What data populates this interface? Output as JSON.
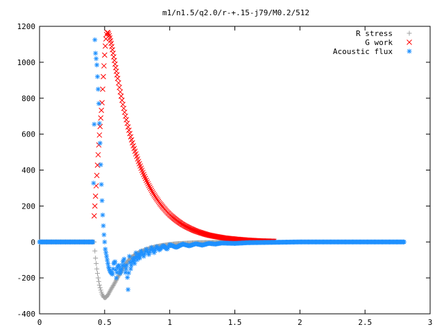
{
  "chart_data": {
    "type": "scatter",
    "title": "m1/n1.5/q2.0/r-+.15-j79/M0.2/512",
    "xlabel": "",
    "ylabel": "",
    "xlim": [
      0,
      3
    ],
    "ylim": [
      -400,
      1200
    ],
    "x_ticks": [
      0,
      0.5,
      1,
      1.5,
      2,
      2.5,
      3
    ],
    "x_tick_labels": [
      "0",
      "0.5",
      "1",
      "1.5",
      "2",
      "2.5",
      "3"
    ],
    "y_ticks": [
      -400,
      -200,
      0,
      200,
      400,
      600,
      800,
      1000,
      1200
    ],
    "y_tick_labels": [
      "-400",
      "-200",
      "0",
      "200",
      "400",
      "600",
      "800",
      "1000",
      "1200"
    ],
    "grid": false,
    "legend_position": "top-right",
    "series": [
      {
        "name": "R stress",
        "marker": "plus",
        "color": "#a0a0a0",
        "points": [
          [
            0.0,
            0
          ],
          [
            0.05,
            0
          ],
          [
            0.1,
            0
          ],
          [
            0.15,
            0
          ],
          [
            0.2,
            0
          ],
          [
            0.25,
            0
          ],
          [
            0.3,
            0
          ],
          [
            0.35,
            0
          ],
          [
            0.4,
            0
          ],
          [
            0.42,
            0
          ],
          [
            0.425,
            -50
          ],
          [
            0.43,
            -90
          ],
          [
            0.435,
            -120
          ],
          [
            0.44,
            -150
          ],
          [
            0.445,
            -175
          ],
          [
            0.45,
            -200
          ],
          [
            0.455,
            -220
          ],
          [
            0.46,
            -240
          ],
          [
            0.465,
            -255
          ],
          [
            0.47,
            -268
          ],
          [
            0.475,
            -280
          ],
          [
            0.48,
            -290
          ],
          [
            0.485,
            -298
          ],
          [
            0.49,
            -304
          ],
          [
            0.495,
            -308
          ],
          [
            0.5,
            -310
          ],
          [
            0.505,
            -310
          ],
          [
            0.51,
            -308
          ],
          [
            0.515,
            -305
          ],
          [
            0.52,
            -300
          ],
          [
            0.525,
            -295
          ],
          [
            0.53,
            -289
          ],
          [
            0.54,
            -275
          ],
          [
            0.55,
            -262
          ],
          [
            0.56,
            -250
          ],
          [
            0.57,
            -238
          ],
          [
            0.58,
            -225
          ],
          [
            0.59,
            -212
          ],
          [
            0.6,
            -198
          ],
          [
            0.61,
            -185
          ],
          [
            0.62,
            -172
          ],
          [
            0.63,
            -160
          ],
          [
            0.64,
            -148
          ],
          [
            0.65,
            -136
          ],
          [
            0.66,
            -125
          ],
          [
            0.67,
            -115
          ],
          [
            0.68,
            -106
          ],
          [
            0.69,
            -98
          ],
          [
            0.7,
            -90
          ],
          [
            0.72,
            -78
          ],
          [
            0.74,
            -68
          ],
          [
            0.76,
            -60
          ],
          [
            0.78,
            -53
          ],
          [
            0.8,
            -47
          ],
          [
            0.82,
            -42
          ],
          [
            0.85,
            -35
          ],
          [
            0.88,
            -29
          ],
          [
            0.91,
            -24
          ],
          [
            0.94,
            -20
          ],
          [
            0.97,
            -17
          ],
          [
            1.0,
            -14
          ],
          [
            1.05,
            -10
          ],
          [
            1.1,
            -8
          ],
          [
            1.15,
            -6
          ],
          [
            1.2,
            -4
          ],
          [
            1.3,
            -3
          ],
          [
            1.4,
            -2
          ],
          [
            1.5,
            -1
          ],
          [
            1.6,
            -1
          ],
          [
            1.7,
            0
          ],
          [
            1.8,
            0
          ]
        ]
      },
      {
        "name": "G work",
        "marker": "cross",
        "color": "#ff0000",
        "points": [
          [
            0.42,
            145
          ],
          [
            0.43,
            255
          ],
          [
            0.44,
            370
          ],
          [
            0.45,
            485
          ],
          [
            0.46,
            595
          ],
          [
            0.47,
            690
          ],
          [
            0.48,
            775
          ],
          [
            0.485,
            850
          ],
          [
            0.49,
            920
          ],
          [
            0.495,
            980
          ],
          [
            0.5,
            1040
          ],
          [
            0.505,
            1090
          ],
          [
            0.51,
            1130
          ],
          [
            0.515,
            1155
          ],
          [
            0.52,
            1165
          ],
          [
            0.525,
            1165
          ],
          [
            0.53,
            1158
          ],
          [
            0.535,
            1148
          ],
          [
            0.54,
            1135
          ],
          [
            0.55,
            1105
          ],
          [
            0.56,
            1070
          ],
          [
            0.57,
            1030
          ],
          [
            0.58,
            990
          ],
          [
            0.59,
            950
          ],
          [
            0.6,
            910
          ],
          [
            0.62,
            835
          ],
          [
            0.64,
            765
          ],
          [
            0.66,
            700
          ],
          [
            0.68,
            640
          ],
          [
            0.7,
            585
          ],
          [
            0.72,
            535
          ],
          [
            0.74,
            490
          ],
          [
            0.76,
            448
          ],
          [
            0.78,
            410
          ],
          [
            0.8,
            375
          ],
          [
            0.82,
            343
          ],
          [
            0.84,
            314
          ],
          [
            0.86,
            287
          ],
          [
            0.88,
            262
          ],
          [
            0.9,
            240
          ],
          [
            0.92,
            219
          ],
          [
            0.94,
            200
          ],
          [
            0.96,
            183
          ],
          [
            0.98,
            167
          ],
          [
            1.0,
            152
          ],
          [
            1.03,
            133
          ],
          [
            1.06,
            116
          ],
          [
            1.09,
            101
          ],
          [
            1.12,
            88
          ],
          [
            1.15,
            77
          ],
          [
            1.18,
            67
          ],
          [
            1.21,
            58
          ],
          [
            1.24,
            51
          ],
          [
            1.27,
            44
          ],
          [
            1.3,
            38
          ],
          [
            1.34,
            32
          ],
          [
            1.38,
            27
          ],
          [
            1.42,
            22
          ],
          [
            1.46,
            19
          ],
          [
            1.5,
            16
          ],
          [
            1.55,
            13
          ],
          [
            1.6,
            10
          ],
          [
            1.65,
            8
          ],
          [
            1.7,
            6
          ],
          [
            1.75,
            5
          ],
          [
            1.8,
            4
          ]
        ]
      },
      {
        "name": "Acoustic flux",
        "marker": "star",
        "color": "#1e90ff",
        "points": [
          [
            0.0,
            0
          ],
          [
            0.05,
            0
          ],
          [
            0.1,
            0
          ],
          [
            0.15,
            0
          ],
          [
            0.2,
            0
          ],
          [
            0.25,
            0
          ],
          [
            0.3,
            0
          ],
          [
            0.35,
            0
          ],
          [
            0.4,
            0
          ],
          [
            0.41,
            0
          ],
          [
            0.42,
            655
          ],
          [
            0.425,
            1125
          ],
          [
            0.43,
            1050
          ],
          [
            0.435,
            1020
          ],
          [
            0.44,
            985
          ],
          [
            0.445,
            920
          ],
          [
            0.45,
            850
          ],
          [
            0.455,
            770
          ],
          [
            0.46,
            660
          ],
          [
            0.465,
            550
          ],
          [
            0.47,
            430
          ],
          [
            0.475,
            320
          ],
          [
            0.48,
            230
          ],
          [
            0.485,
            150
          ],
          [
            0.49,
            90
          ],
          [
            0.495,
            40
          ],
          [
            0.5,
            0
          ],
          [
            0.505,
            -40
          ],
          [
            0.51,
            -60
          ],
          [
            0.515,
            -80
          ],
          [
            0.52,
            -100
          ],
          [
            0.525,
            -120
          ],
          [
            0.53,
            -140
          ],
          [
            0.535,
            -150
          ],
          [
            0.54,
            -160
          ],
          [
            0.55,
            -170
          ],
          [
            0.56,
            -180
          ],
          [
            0.565,
            -150
          ],
          [
            0.57,
            -120
          ],
          [
            0.58,
            -110
          ],
          [
            0.59,
            -200
          ],
          [
            0.6,
            -140
          ],
          [
            0.61,
            -130
          ],
          [
            0.62,
            -175
          ],
          [
            0.63,
            -150
          ],
          [
            0.64,
            -110
          ],
          [
            0.65,
            -95
          ],
          [
            0.66,
            -170
          ],
          [
            0.67,
            -130
          ],
          [
            0.68,
            -265
          ],
          [
            0.69,
            -80
          ],
          [
            0.7,
            -150
          ],
          [
            0.71,
            -110
          ],
          [
            0.72,
            -90
          ],
          [
            0.73,
            -120
          ],
          [
            0.74,
            -60
          ],
          [
            0.75,
            -100
          ],
          [
            0.76,
            -70
          ],
          [
            0.77,
            -90
          ],
          [
            0.78,
            -50
          ],
          [
            0.8,
            -80
          ],
          [
            0.82,
            -40
          ],
          [
            0.84,
            -70
          ],
          [
            0.86,
            -30
          ],
          [
            0.88,
            -60
          ],
          [
            0.9,
            -25
          ],
          [
            0.92,
            -45
          ],
          [
            0.95,
            -20
          ],
          [
            0.98,
            -40
          ],
          [
            1.0,
            -15
          ],
          [
            1.05,
            -30
          ],
          [
            1.1,
            -12
          ],
          [
            1.15,
            -22
          ],
          [
            1.2,
            -10
          ],
          [
            1.25,
            -18
          ],
          [
            1.3,
            -8
          ],
          [
            1.35,
            -12
          ],
          [
            1.4,
            -6
          ],
          [
            1.5,
            -8
          ],
          [
            1.6,
            -4
          ],
          [
            1.7,
            -3
          ],
          [
            1.8,
            -2
          ],
          [
            1.9,
            -1
          ],
          [
            2.0,
            0
          ],
          [
            2.1,
            0
          ],
          [
            2.2,
            0
          ],
          [
            2.3,
            0
          ],
          [
            2.4,
            0
          ],
          [
            2.5,
            0
          ],
          [
            2.6,
            0
          ],
          [
            2.7,
            0
          ],
          [
            2.8,
            0
          ]
        ]
      }
    ]
  }
}
